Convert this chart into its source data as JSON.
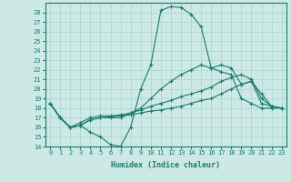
{
  "xlabel": "Humidex (Indice chaleur)",
  "background_color": "#cce9e5",
  "grid_color": "#aad4cf",
  "line_color": "#1a7a6e",
  "xlim": [
    -0.5,
    23.5
  ],
  "ylim": [
    14,
    29
  ],
  "xticks": [
    0,
    1,
    2,
    3,
    4,
    5,
    6,
    7,
    8,
    9,
    10,
    11,
    12,
    13,
    14,
    15,
    16,
    17,
    18,
    19,
    20,
    21,
    22,
    23
  ],
  "yticks": [
    14,
    15,
    16,
    17,
    18,
    19,
    20,
    21,
    22,
    23,
    24,
    25,
    26,
    27,
    28
  ],
  "series": [
    [
      18.5,
      17.0,
      16.0,
      16.2,
      15.5,
      15.0,
      14.2,
      14.0,
      16.0,
      20.0,
      22.5,
      28.2,
      28.6,
      28.5,
      27.8,
      26.5,
      22.2,
      21.8,
      21.5,
      19.0,
      18.5,
      18.0,
      18.0,
      18.0
    ],
    [
      18.5,
      17.0,
      16.0,
      16.2,
      16.8,
      17.0,
      17.0,
      17.0,
      17.5,
      18.0,
      19.0,
      20.0,
      20.8,
      21.5,
      22.0,
      22.5,
      22.2,
      22.5,
      22.2,
      20.5,
      20.8,
      19.5,
      18.2,
      18.0
    ],
    [
      18.5,
      17.0,
      16.0,
      16.5,
      17.0,
      17.2,
      17.2,
      17.3,
      17.5,
      17.8,
      18.2,
      18.5,
      18.8,
      19.2,
      19.5,
      19.8,
      20.2,
      20.8,
      21.2,
      21.5,
      21.0,
      19.0,
      18.2,
      18.0
    ],
    [
      18.5,
      17.0,
      16.0,
      16.2,
      16.8,
      17.0,
      17.1,
      17.2,
      17.3,
      17.5,
      17.7,
      17.8,
      18.0,
      18.2,
      18.5,
      18.8,
      19.0,
      19.5,
      20.0,
      20.5,
      20.8,
      18.5,
      18.2,
      18.0
    ]
  ]
}
